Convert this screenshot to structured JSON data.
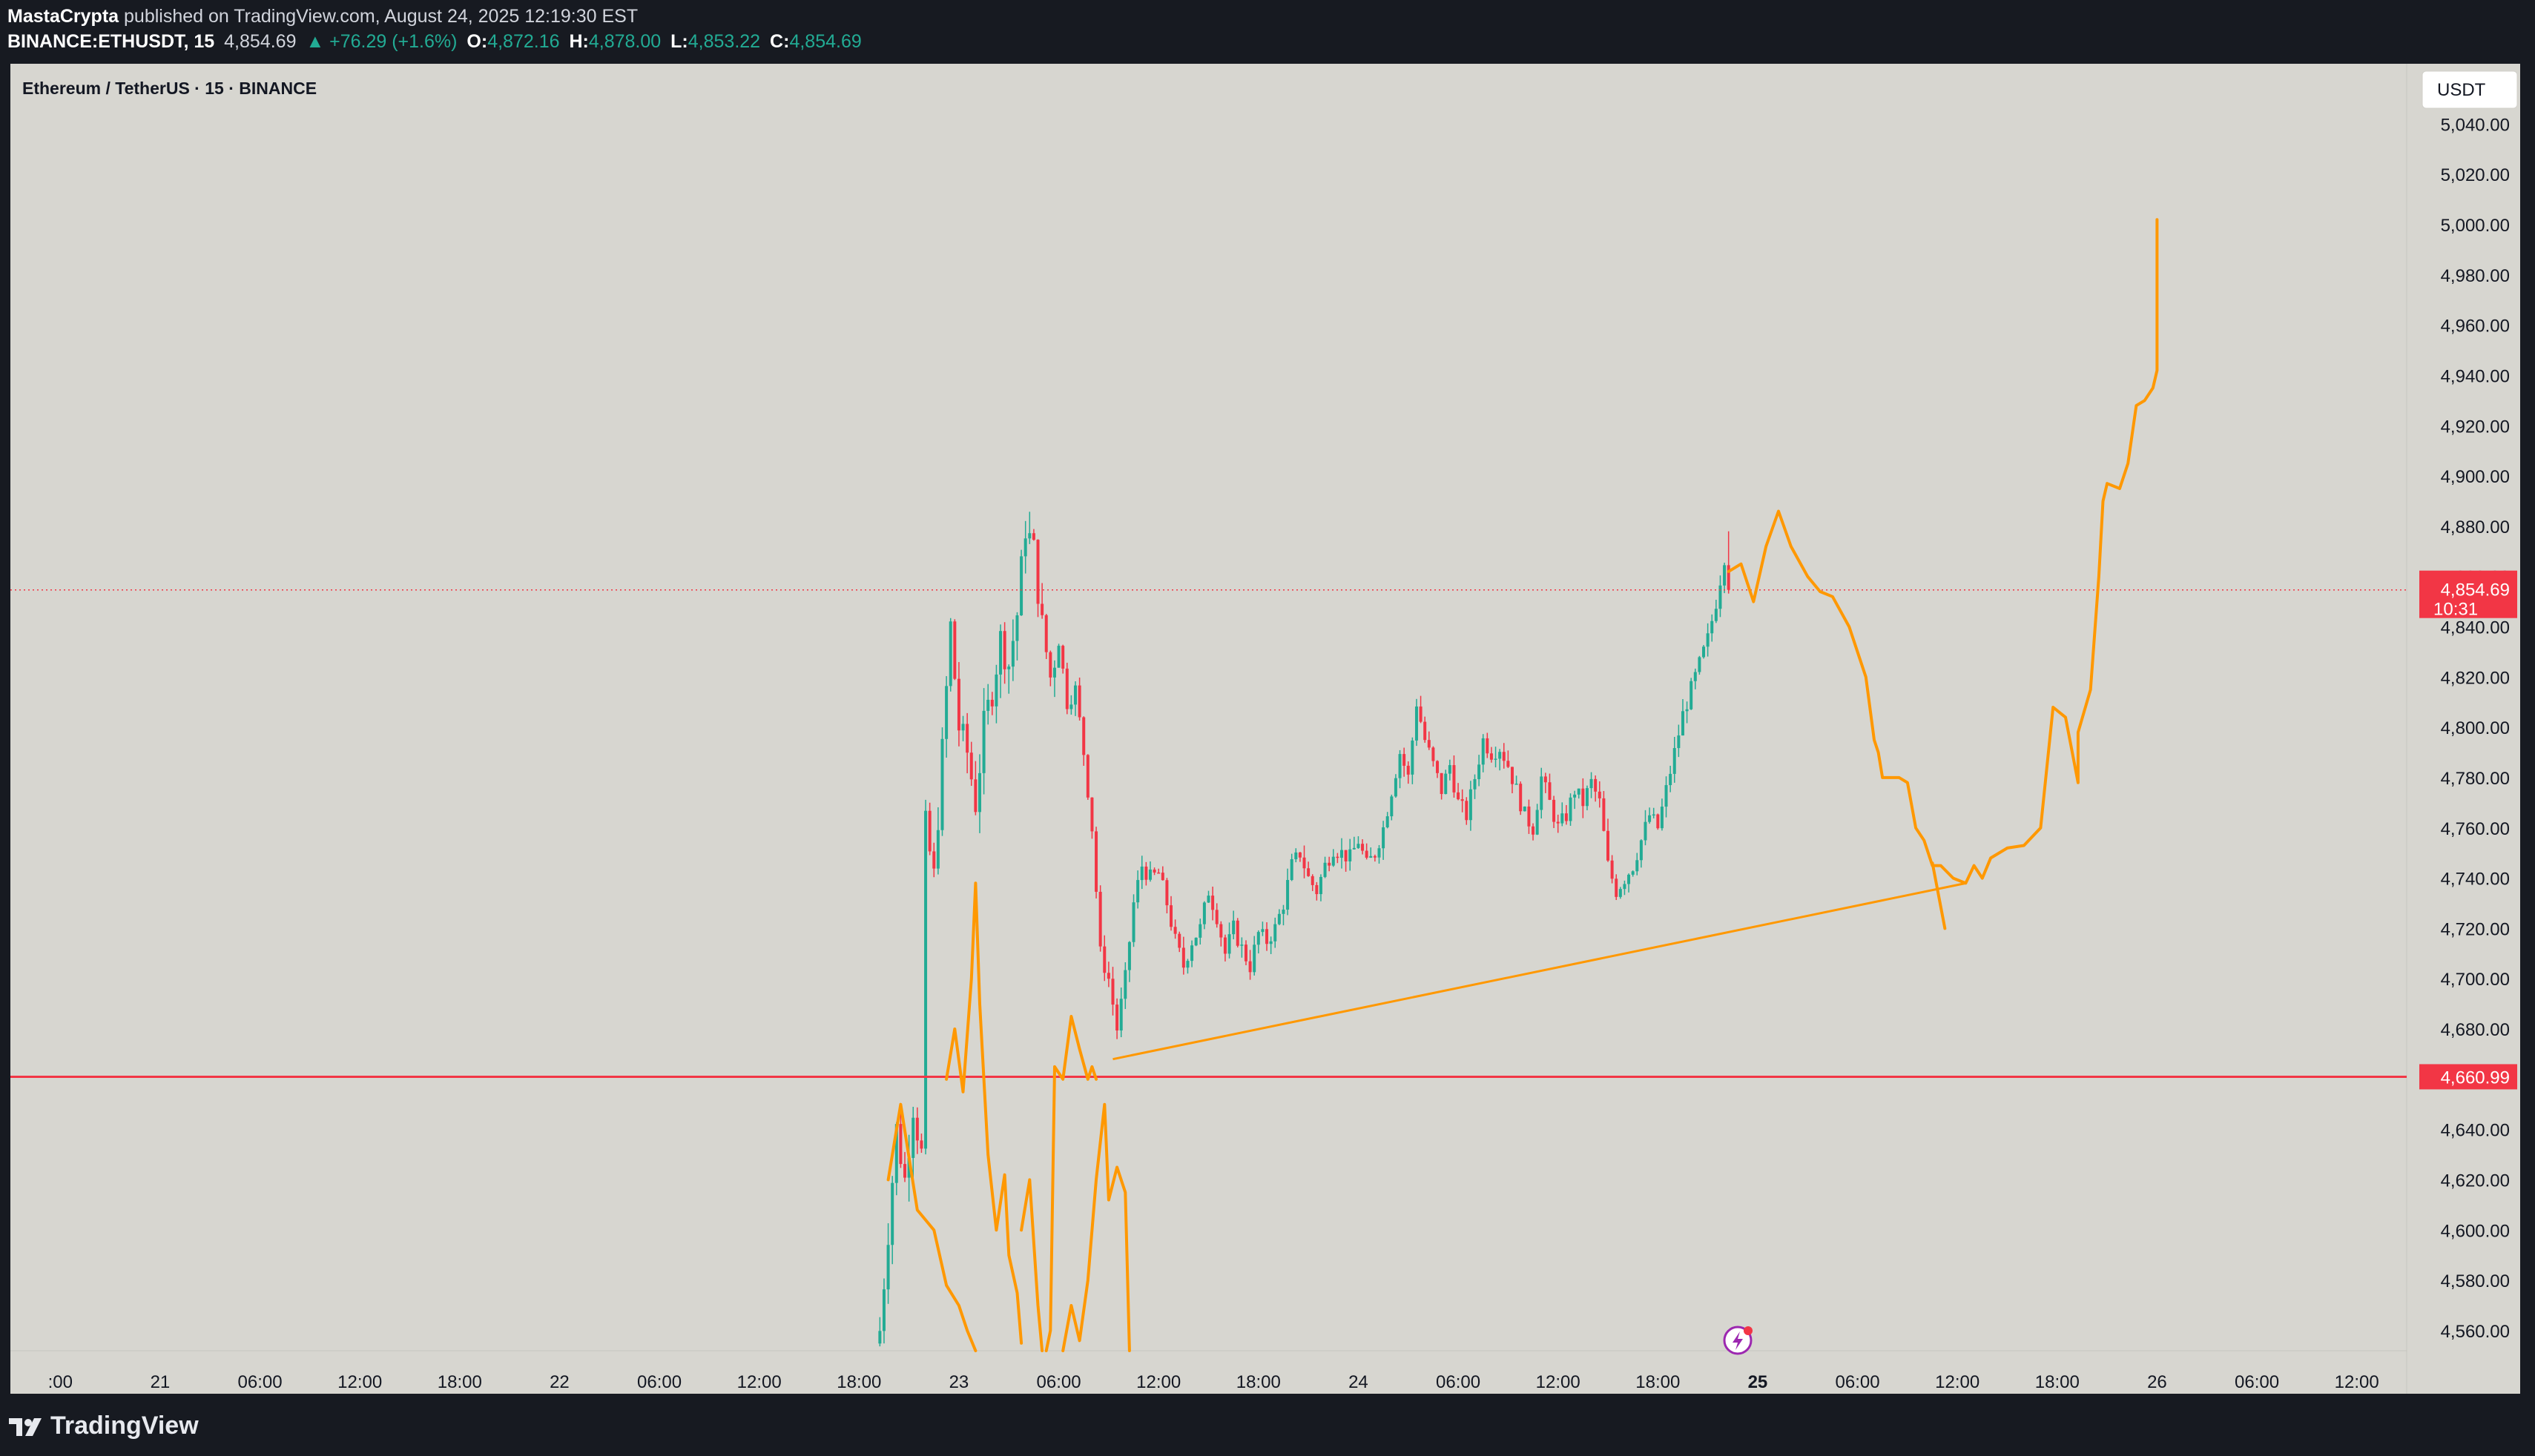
{
  "header": {
    "author": "MastaCrypta",
    "published_text": "published on TradingView.com, August 24, 2025 12:19:30 EST",
    "symbol": "BINANCE:ETHUSDT, 15",
    "last": "4,854.69",
    "change": "▲ +76.29 (+1.6%)",
    "o_label": "O:",
    "o_value": "4,872.16",
    "h_label": "H:",
    "h_value": "4,878.00",
    "l_label": "L:",
    "l_value": "4,853.22",
    "c_label": "C:",
    "c_value": "4,854.69"
  },
  "legend": {
    "title": "Ethereum / TetherUS · 15 · BINANCE"
  },
  "currency_button": "USDT",
  "footer": {
    "brand": "TradingView"
  },
  "colors": {
    "background": "#d7d6d0",
    "up": "#22ab94",
    "down": "#f23645",
    "drawing": "#ff9800",
    "support": "#f23645"
  },
  "chart_data": {
    "type": "candlestick",
    "title": "Ethereum / TetherUS · 15 · BINANCE",
    "interval": "15",
    "currency": "USDT",
    "ylim": [
      4552,
      5064
    ],
    "y_ticks": [
      4560,
      4580,
      4600,
      4620,
      4640,
      4660,
      4680,
      4700,
      4720,
      4740,
      4760,
      4780,
      4800,
      4820,
      4840,
      4860,
      4880,
      4900,
      4920,
      4940,
      4960,
      4980,
      5000,
      5020,
      5040
    ],
    "y_tick_labels": [
      "4,560.00",
      "4,580.00",
      "4,600.00",
      "4,620.00",
      "4,640.00",
      "4,660.00",
      "4,680.00",
      "4,700.00",
      "4,720.00",
      "4,740.00",
      "4,760.00",
      "4,780.00",
      "4,800.00",
      "4,820.00",
      "4,840.00",
      "4,860.00",
      "4,880.00",
      "4,900.00",
      "4,920.00",
      "4,940.00",
      "4,960.00",
      "4,980.00",
      "5,000.00",
      "5,020.00",
      "5,040.00"
    ],
    "x_range": [
      "2025-08-20T15:00",
      "2025-08-26T15:00"
    ],
    "x_ticks": [
      {
        "t": "2025-08-20T18:00",
        "label": ":00",
        "bold": false
      },
      {
        "t": "2025-08-21T00:00",
        "label": "21",
        "bold": false
      },
      {
        "t": "2025-08-21T06:00",
        "label": "06:00",
        "bold": false
      },
      {
        "t": "2025-08-21T12:00",
        "label": "12:00",
        "bold": false
      },
      {
        "t": "2025-08-21T18:00",
        "label": "18:00",
        "bold": false
      },
      {
        "t": "2025-08-22T00:00",
        "label": "22",
        "bold": false
      },
      {
        "t": "2025-08-22T06:00",
        "label": "06:00",
        "bold": false
      },
      {
        "t": "2025-08-22T12:00",
        "label": "12:00",
        "bold": false
      },
      {
        "t": "2025-08-22T18:00",
        "label": "18:00",
        "bold": false
      },
      {
        "t": "2025-08-23T00:00",
        "label": "23",
        "bold": false
      },
      {
        "t": "2025-08-23T06:00",
        "label": "06:00",
        "bold": false
      },
      {
        "t": "2025-08-23T12:00",
        "label": "12:00",
        "bold": false
      },
      {
        "t": "2025-08-23T18:00",
        "label": "18:00",
        "bold": false
      },
      {
        "t": "2025-08-24T00:00",
        "label": "24",
        "bold": false
      },
      {
        "t": "2025-08-24T06:00",
        "label": "06:00",
        "bold": false
      },
      {
        "t": "2025-08-24T12:00",
        "label": "12:00",
        "bold": false
      },
      {
        "t": "2025-08-24T18:00",
        "label": "18:00",
        "bold": false
      },
      {
        "t": "2025-08-25T00:00",
        "label": "25",
        "bold": true
      },
      {
        "t": "2025-08-25T06:00",
        "label": "06:00",
        "bold": false
      },
      {
        "t": "2025-08-25T12:00",
        "label": "12:00",
        "bold": false
      },
      {
        "t": "2025-08-25T18:00",
        "label": "18:00",
        "bold": false
      },
      {
        "t": "2025-08-26T00:00",
        "label": "26",
        "bold": false
      },
      {
        "t": "2025-08-26T06:00",
        "label": "06:00",
        "bold": false
      },
      {
        "t": "2025-08-26T12:00",
        "label": "12:00",
        "bold": false
      }
    ],
    "last_price": {
      "value": 4854.69,
      "label": "4,854.69",
      "countdown": "10:31"
    },
    "support_line": {
      "value": 4660.99,
      "label": "4,660.99"
    },
    "close_path": [
      [
        "2025-08-22T19:15",
        4560
      ],
      [
        "2025-08-22T19:45",
        4600
      ],
      [
        "2025-08-22T20:15",
        4640
      ],
      [
        "2025-08-22T20:45",
        4620
      ],
      [
        "2025-08-22T21:15",
        4650
      ],
      [
        "2025-08-22T21:45",
        4630
      ],
      [
        "2025-08-22T22:00",
        4760
      ],
      [
        "2025-08-22T22:30",
        4740
      ],
      [
        "2025-08-22T23:00",
        4790
      ],
      [
        "2025-08-22T23:30",
        4840
      ],
      [
        "2025-08-23T00:00",
        4800
      ],
      [
        "2025-08-23T00:30",
        4790
      ],
      [
        "2025-08-23T01:00",
        4770
      ],
      [
        "2025-08-23T01:30",
        4800
      ],
      [
        "2025-08-23T02:00",
        4815
      ],
      [
        "2025-08-23T02:30",
        4835
      ],
      [
        "2025-08-23T03:00",
        4825
      ],
      [
        "2025-08-23T03:30",
        4845
      ],
      [
        "2025-08-23T04:00",
        4880
      ],
      [
        "2025-08-23T04:30",
        4870
      ],
      [
        "2025-08-23T05:00",
        4840
      ],
      [
        "2025-08-23T05:30",
        4820
      ],
      [
        "2025-08-23T06:00",
        4835
      ],
      [
        "2025-08-23T06:30",
        4810
      ],
      [
        "2025-08-23T07:00",
        4815
      ],
      [
        "2025-08-23T07:30",
        4790
      ],
      [
        "2025-08-23T08:00",
        4760
      ],
      [
        "2025-08-23T08:30",
        4710
      ],
      [
        "2025-08-23T09:00",
        4700
      ],
      [
        "2025-08-23T09:30",
        4680
      ],
      [
        "2025-08-23T10:00",
        4700
      ],
      [
        "2025-08-23T10:30",
        4730
      ],
      [
        "2025-08-23T11:00",
        4745
      ],
      [
        "2025-08-23T11:30",
        4740
      ],
      [
        "2025-08-23T12:00",
        4742
      ],
      [
        "2025-08-23T12:30",
        4730
      ],
      [
        "2025-08-23T13:00",
        4715
      ],
      [
        "2025-08-23T13:30",
        4705
      ],
      [
        "2025-08-23T14:00",
        4715
      ],
      [
        "2025-08-23T14:30",
        4720
      ],
      [
        "2025-08-23T15:00",
        4735
      ],
      [
        "2025-08-23T15:30",
        4725
      ],
      [
        "2025-08-23T16:00",
        4710
      ],
      [
        "2025-08-23T16:30",
        4720
      ],
      [
        "2025-08-23T17:00",
        4712
      ],
      [
        "2025-08-23T17:30",
        4705
      ],
      [
        "2025-08-23T18:00",
        4718
      ],
      [
        "2025-08-23T18:30",
        4715
      ],
      [
        "2025-08-23T19:00",
        4720
      ],
      [
        "2025-08-23T19:30",
        4730
      ],
      [
        "2025-08-23T20:00",
        4745
      ],
      [
        "2025-08-23T20:30",
        4750
      ],
      [
        "2025-08-23T21:00",
        4740
      ],
      [
        "2025-08-23T21:30",
        4735
      ],
      [
        "2025-08-23T22:00",
        4745
      ],
      [
        "2025-08-23T22:30",
        4752
      ],
      [
        "2025-08-23T23:00",
        4750
      ],
      [
        "2025-08-23T23:30",
        4748
      ],
      [
        "2025-08-24T00:00",
        4755
      ],
      [
        "2025-08-24T00:30",
        4745
      ],
      [
        "2025-08-24T01:00",
        4750
      ],
      [
        "2025-08-24T01:30",
        4760
      ],
      [
        "2025-08-24T02:00",
        4775
      ],
      [
        "2025-08-24T02:30",
        4790
      ],
      [
        "2025-08-24T03:00",
        4780
      ],
      [
        "2025-08-24T03:30",
        4810
      ],
      [
        "2025-08-24T04:00",
        4795
      ],
      [
        "2025-08-24T04:30",
        4785
      ],
      [
        "2025-08-24T05:00",
        4775
      ],
      [
        "2025-08-24T05:30",
        4785
      ],
      [
        "2025-08-24T06:00",
        4770
      ],
      [
        "2025-08-24T06:30",
        4765
      ],
      [
        "2025-08-24T07:00",
        4780
      ],
      [
        "2025-08-24T07:30",
        4795
      ],
      [
        "2025-08-24T08:00",
        4790
      ],
      [
        "2025-08-24T08:30",
        4792
      ],
      [
        "2025-08-24T09:00",
        4785
      ],
      [
        "2025-08-24T09:30",
        4775
      ],
      [
        "2025-08-24T10:00",
        4765
      ],
      [
        "2025-08-24T10:30",
        4760
      ],
      [
        "2025-08-24T11:00",
        4780
      ],
      [
        "2025-08-24T11:30",
        4770
      ],
      [
        "2025-08-24T12:00",
        4760
      ],
      [
        "2025-08-24T12:30",
        4765
      ],
      [
        "2025-08-24T13:00",
        4775
      ],
      [
        "2025-08-24T13:30",
        4770
      ],
      [
        "2025-08-24T14:00",
        4778
      ],
      [
        "2025-08-24T14:30",
        4770
      ],
      [
        "2025-08-24T15:00",
        4745
      ],
      [
        "2025-08-24T15:30",
        4735
      ],
      [
        "2025-08-24T16:00",
        4740
      ],
      [
        "2025-08-24T16:30",
        4745
      ],
      [
        "2025-08-24T17:00",
        4755
      ],
      [
        "2025-08-24T17:30",
        4765
      ],
      [
        "2025-08-24T18:00",
        4760
      ],
      [
        "2025-08-24T18:30",
        4775
      ],
      [
        "2025-08-24T19:00",
        4790
      ],
      [
        "2025-08-24T19:30",
        4805
      ],
      [
        "2025-08-24T20:00",
        4815
      ],
      [
        "2025-08-24T20:30",
        4825
      ],
      [
        "2025-08-24T21:00",
        4835
      ],
      [
        "2025-08-24T21:30",
        4850
      ],
      [
        "2025-08-24T22:00",
        4868
      ],
      [
        "2025-08-24T22:15",
        4854.69
      ]
    ],
    "drawings": {
      "projection_path": [
        [
          "2025-08-24T22:15",
          4862
        ],
        [
          "2025-08-24T23:00",
          4865
        ],
        [
          "2025-08-24T23:45",
          4850
        ],
        [
          "2025-08-25T00:30",
          4872
        ],
        [
          "2025-08-25T01:15",
          4886
        ],
        [
          "2025-08-25T02:00",
          4872
        ],
        [
          "2025-08-25T03:00",
          4860
        ],
        [
          "2025-08-25T03:45",
          4854
        ],
        [
          "2025-08-25T04:30",
          4852
        ],
        [
          "2025-08-25T05:30",
          4840
        ],
        [
          "2025-08-25T06:30",
          4820
        ],
        [
          "2025-08-25T07:00",
          4795
        ],
        [
          "2025-08-25T07:15",
          4790
        ],
        [
          "2025-08-25T07:30",
          4780
        ],
        [
          "2025-08-25T08:30",
          4780
        ],
        [
          "2025-08-25T09:00",
          4778
        ],
        [
          "2025-08-25T09:30",
          4760
        ],
        [
          "2025-08-25T10:00",
          4755
        ],
        [
          "2025-08-25T10:30",
          4745
        ],
        [
          "2025-08-25T11:00",
          4745
        ],
        [
          "2025-08-25T11:45",
          4740
        ],
        [
          "2025-08-25T12:30",
          4738
        ],
        [
          "2025-08-25T13:00",
          4745
        ],
        [
          "2025-08-25T13:30",
          4740
        ],
        [
          "2025-08-25T14:00",
          4748
        ],
        [
          "2025-08-25T15:00",
          4752
        ],
        [
          "2025-08-25T16:00",
          4753
        ],
        [
          "2025-08-25T17:00",
          4760
        ],
        [
          "2025-08-25T17:45",
          4808
        ],
        [
          "2025-08-25T18:30",
          4804
        ],
        [
          "2025-08-25T19:15",
          4778
        ],
        [
          "2025-08-25T19:15",
          4798
        ],
        [
          "2025-08-25T20:00",
          4815
        ],
        [
          "2025-08-25T20:30",
          4860
        ],
        [
          "2025-08-25T20:45",
          4890
        ],
        [
          "2025-08-25T21:00",
          4897
        ],
        [
          "2025-08-25T21:45",
          4895
        ],
        [
          "2025-08-25T22:15",
          4905
        ],
        [
          "2025-08-25T22:45",
          4928
        ],
        [
          "2025-08-25T23:15",
          4930
        ],
        [
          "2025-08-25T23:45",
          4935
        ],
        [
          "2025-08-26T00:00",
          4942
        ],
        [
          "2025-08-26T00:00",
          5002
        ]
      ],
      "trend_line": [
        [
          "2025-08-23T09:15",
          4668
        ],
        [
          "2025-08-25T12:30",
          4738
        ]
      ],
      "trend_tail": [
        [
          "2025-08-25T10:30",
          4746
        ],
        [
          "2025-08-25T11:15",
          4720
        ]
      ]
    },
    "grid": false
  }
}
